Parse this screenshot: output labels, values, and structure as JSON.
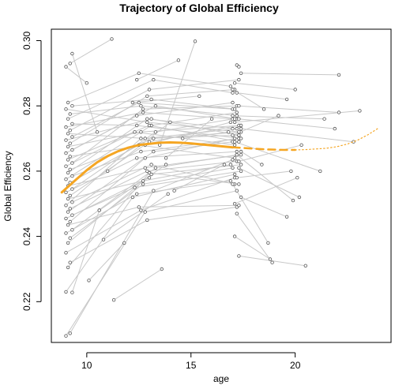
{
  "chart_data": {
    "type": "line",
    "title": "Trajectory of Global Efficiency",
    "xlabel": "age",
    "ylabel": "Global Efficiency",
    "xlim": [
      8.3,
      24.6
    ],
    "ylim": [
      0.2075,
      0.3035
    ],
    "x_ticks": [
      "10",
      "15",
      "20"
    ],
    "x_tick_values": [
      10,
      15,
      20
    ],
    "y_ticks": [
      "0.22",
      "0.24",
      "0.26",
      "0.28",
      "0.30"
    ],
    "y_tick_values": [
      0.22,
      0.24,
      0.26,
      0.28,
      0.3
    ],
    "grid": false,
    "colors": {
      "subject_lines": "#c8c8c8",
      "points": "#555555",
      "fit": "#f5a623",
      "frame": "#000000"
    },
    "series": [
      {
        "kind": "fit",
        "style": "solid",
        "x": [
          8.8,
          9.5,
          10,
          10.5,
          11,
          11.5,
          12,
          12.5,
          13,
          13.5,
          14,
          14.5,
          15,
          15.5,
          16,
          16.5,
          17
        ],
        "y": [
          0.2535,
          0.2575,
          0.2603,
          0.2627,
          0.2646,
          0.2661,
          0.2672,
          0.268,
          0.2684,
          0.2687,
          0.2688,
          0.2687,
          0.2685,
          0.2682,
          0.2679,
          0.2676,
          0.2673
        ]
      },
      {
        "kind": "fit",
        "style": "dashed",
        "x": [
          17,
          17.5,
          18,
          18.5,
          19,
          19.5,
          20
        ],
        "y": [
          0.2673,
          0.2671,
          0.2669,
          0.2667,
          0.2666,
          0.2665,
          0.2665
        ]
      },
      {
        "kind": "fit",
        "style": "dotted",
        "x": [
          20,
          20.5,
          21,
          21.5,
          22,
          22.5,
          23,
          23.5,
          24
        ],
        "y": [
          0.2665,
          0.2666,
          0.2668,
          0.267,
          0.2675,
          0.2683,
          0.2695,
          0.2712,
          0.2732
        ]
      }
    ],
    "trajectories": [
      [
        [
          9.0,
          0.2095
        ],
        [
          12.8,
          0.2475
        ],
        [
          17.2,
          0.254
        ]
      ],
      [
        [
          9.2,
          0.2103
        ],
        [
          13.2,
          0.254
        ],
        [
          17.0,
          0.2635
        ]
      ],
      [
        [
          9.0,
          0.223
        ],
        [
          12.2,
          0.252
        ],
        [
          17.1,
          0.259
        ]
      ],
      [
        [
          9.3,
          0.2228
        ],
        [
          10.6,
          0.248
        ]
      ],
      [
        [
          9.1,
          0.2305
        ],
        [
          13.0,
          0.2595
        ],
        [
          17.3,
          0.256
        ]
      ],
      [
        [
          9.2,
          0.232
        ],
        [
          12.9,
          0.245
        ],
        [
          17.2,
          0.249
        ]
      ],
      [
        [
          9.0,
          0.235
        ],
        [
          12.6,
          0.248
        ],
        [
          17.1,
          0.258
        ]
      ],
      [
        [
          9.1,
          0.238
        ],
        [
          13.1,
          0.259
        ],
        [
          17.4,
          0.262
        ]
      ],
      [
        [
          9.2,
          0.2395
        ],
        [
          12.7,
          0.256
        ],
        [
          17.0,
          0.261
        ]
      ],
      [
        [
          9.0,
          0.241
        ],
        [
          12.4,
          0.253
        ],
        [
          16.9,
          0.257
        ]
      ],
      [
        [
          9.3,
          0.242
        ],
        [
          13.3,
          0.261
        ],
        [
          17.2,
          0.265
        ]
      ],
      [
        [
          9.1,
          0.2435
        ],
        [
          12.5,
          0.249
        ],
        [
          17.3,
          0.2495
        ]
      ],
      [
        [
          9.2,
          0.2445
        ],
        [
          12.8,
          0.264
        ],
        [
          17.1,
          0.27
        ]
      ],
      [
        [
          9.0,
          0.2455
        ],
        [
          13.0,
          0.258
        ]
      ],
      [
        [
          9.3,
          0.2465
        ],
        [
          12.3,
          0.255
        ],
        [
          17.4,
          0.26
        ]
      ],
      [
        [
          9.1,
          0.2475
        ],
        [
          13.2,
          0.266
        ],
        [
          17.0,
          0.269
        ]
      ],
      [
        [
          9.2,
          0.2485
        ],
        [
          12.9,
          0.26
        ],
        [
          17.2,
          0.263
        ]
      ],
      [
        [
          9.0,
          0.2495
        ],
        [
          12.6,
          0.27
        ],
        [
          17.3,
          0.271
        ]
      ],
      [
        [
          9.3,
          0.2505
        ],
        [
          13.1,
          0.262
        ],
        [
          17.1,
          0.256
        ]
      ],
      [
        [
          9.1,
          0.2515
        ],
        [
          12.7,
          0.257
        ],
        [
          16.9,
          0.262
        ]
      ],
      [
        [
          9.2,
          0.2525
        ],
        [
          13.0,
          0.269
        ],
        [
          17.3,
          0.274
        ]
      ],
      [
        [
          9.0,
          0.2535
        ],
        [
          12.4,
          0.264
        ],
        [
          17.2,
          0.266
        ]
      ],
      [
        [
          9.3,
          0.2545
        ],
        [
          13.3,
          0.272
        ],
        [
          17.0,
          0.276
        ]
      ],
      [
        [
          9.1,
          0.2555
        ],
        [
          12.8,
          0.261
        ],
        [
          17.4,
          0.265
        ]
      ],
      [
        [
          9.2,
          0.2565
        ],
        [
          12.5,
          0.268
        ],
        [
          17.1,
          0.264
        ]
      ],
      [
        [
          9.0,
          0.2575
        ],
        [
          13.1,
          0.274
        ],
        [
          17.2,
          0.278
        ]
      ],
      [
        [
          9.3,
          0.2585
        ],
        [
          12.6,
          0.266
        ],
        [
          17.3,
          0.27
        ]
      ],
      [
        [
          9.1,
          0.2595
        ],
        [
          12.9,
          0.276
        ],
        [
          17.0,
          0.273
        ]
      ],
      [
        [
          9.2,
          0.2605
        ],
        [
          13.2,
          0.27
        ],
        [
          17.4,
          0.272
        ]
      ],
      [
        [
          9.0,
          0.2615
        ],
        [
          12.3,
          0.272
        ],
        [
          17.1,
          0.268
        ]
      ],
      [
        [
          9.3,
          0.2625
        ],
        [
          12.7,
          0.279
        ],
        [
          17.2,
          0.28
        ]
      ],
      [
        [
          9.1,
          0.2635
        ],
        [
          13.0,
          0.274
        ],
        [
          17.3,
          0.269
        ]
      ],
      [
        [
          9.2,
          0.2645
        ],
        [
          12.8,
          0.268
        ],
        [
          16.9,
          0.275
        ]
      ],
      [
        [
          9.0,
          0.2655
        ],
        [
          12.4,
          0.277
        ],
        [
          17.0,
          0.281
        ]
      ],
      [
        [
          9.3,
          0.2665
        ],
        [
          13.3,
          0.28
        ],
        [
          17.2,
          0.276
        ]
      ],
      [
        [
          9.1,
          0.2675
        ],
        [
          12.6,
          0.272
        ],
        [
          17.4,
          0.274
        ]
      ],
      [
        [
          9.2,
          0.2685
        ],
        [
          12.9,
          0.283
        ],
        [
          17.1,
          0.285
        ]
      ],
      [
        [
          9.0,
          0.2695
        ],
        [
          13.1,
          0.276
        ],
        [
          17.3,
          0.271
        ]
      ],
      [
        [
          9.3,
          0.2705
        ],
        [
          12.5,
          0.281
        ],
        [
          17.0,
          0.279
        ]
      ],
      [
        [
          9.1,
          0.2715
        ],
        [
          12.8,
          0.27
        ],
        [
          17.2,
          0.273
        ]
      ],
      [
        [
          9.2,
          0.2725
        ],
        [
          13.0,
          0.285
        ],
        [
          17.3,
          0.288
        ]
      ],
      [
        [
          9.0,
          0.2735
        ],
        [
          12.7,
          0.278
        ],
        [
          17.1,
          0.276
        ]
      ],
      [
        [
          9.3,
          0.2745
        ],
        [
          12.4,
          0.274
        ],
        [
          17.4,
          0.27
        ]
      ],
      [
        [
          9.1,
          0.276
        ],
        [
          13.2,
          0.288
        ],
        [
          17.0,
          0.284
        ]
      ],
      [
        [
          9.2,
          0.2775
        ],
        [
          12.6,
          0.28
        ],
        [
          17.2,
          0.277
        ]
      ],
      [
        [
          9.0,
          0.279
        ],
        [
          12.9,
          0.275
        ],
        [
          17.3,
          0.272
        ]
      ],
      [
        [
          9.3,
          0.28
        ],
        [
          13.1,
          0.282
        ],
        [
          17.1,
          0.279
        ]
      ],
      [
        [
          9.1,
          0.281
        ],
        [
          12.5,
          0.29
        ],
        [
          16.9,
          0.286
        ]
      ],
      [
        [
          9.2,
          0.293
        ],
        [
          11.2,
          0.3005
        ]
      ],
      [
        [
          9.3,
          0.296
        ],
        [
          10.5,
          0.272
        ]
      ],
      [
        [
          9.0,
          0.292
        ],
        [
          10.0,
          0.287
        ]
      ],
      [
        [
          11.3,
          0.2205
        ],
        [
          13.6,
          0.23
        ]
      ],
      [
        [
          10.1,
          0.2265
        ],
        [
          11.8,
          0.238
        ]
      ],
      [
        [
          10.8,
          0.239
        ],
        [
          13.9,
          0.253
        ]
      ],
      [
        [
          10.6,
          0.248
        ],
        [
          13.8,
          0.262
        ]
      ],
      [
        [
          11.0,
          0.26
        ],
        [
          14.0,
          0.275
        ]
      ],
      [
        [
          12.2,
          0.281
        ],
        [
          15.4,
          0.283
        ]
      ],
      [
        [
          13.5,
          0.268
        ],
        [
          15.2,
          0.2998
        ]
      ],
      [
        [
          12.4,
          0.288
        ],
        [
          14.4,
          0.294
        ]
      ],
      [
        [
          13.8,
          0.264
        ],
        [
          16.0,
          0.276
        ]
      ],
      [
        [
          14.2,
          0.254
        ],
        [
          16.6,
          0.262
        ]
      ],
      [
        [
          14.6,
          0.27
        ],
        [
          16.8,
          0.272
        ]
      ],
      [
        [
          17.3,
          0.234
        ],
        [
          20.5,
          0.231
        ]
      ],
      [
        [
          17.1,
          0.24
        ],
        [
          18.8,
          0.233
        ]
      ],
      [
        [
          17.2,
          0.247
        ],
        [
          18.9,
          0.232
        ]
      ],
      [
        [
          17.4,
          0.252
        ],
        [
          19.6,
          0.246
        ]
      ],
      [
        [
          17.0,
          0.256
        ],
        [
          18.7,
          0.238
        ]
      ],
      [
        [
          17.3,
          0.261
        ],
        [
          20.2,
          0.252
        ]
      ],
      [
        [
          17.2,
          0.265
        ],
        [
          19.9,
          0.251
        ]
      ],
      [
        [
          17.1,
          0.269
        ],
        [
          21.2,
          0.26
        ]
      ],
      [
        [
          17.4,
          0.273
        ],
        [
          22.8,
          0.269
        ]
      ],
      [
        [
          17.0,
          0.277
        ],
        [
          21.4,
          0.276
        ]
      ],
      [
        [
          17.3,
          0.28
        ],
        [
          22.1,
          0.278
        ]
      ],
      [
        [
          17.2,
          0.284
        ],
        [
          19.6,
          0.282
        ]
      ],
      [
        [
          17.1,
          0.287
        ],
        [
          20.0,
          0.285
        ]
      ],
      [
        [
          17.4,
          0.29
        ],
        [
          22.1,
          0.2895
        ]
      ],
      [
        [
          17.2,
          0.2925
        ],
        [
          17.3,
          0.292
        ]
      ],
      [
        [
          17.3,
          0.263
        ],
        [
          20.3,
          0.268
        ]
      ],
      [
        [
          17.1,
          0.275
        ],
        [
          23.1,
          0.2785
        ]
      ],
      [
        [
          17.0,
          0.271
        ],
        [
          19.2,
          0.277
        ]
      ],
      [
        [
          17.2,
          0.258
        ],
        [
          19.8,
          0.26
        ]
      ],
      [
        [
          17.3,
          0.276
        ],
        [
          21.9,
          0.273
        ]
      ],
      [
        [
          17.4,
          0.266
        ],
        [
          18.4,
          0.262
        ]
      ],
      [
        [
          17.0,
          0.285
        ],
        [
          18.5,
          0.279
        ]
      ],
      [
        [
          17.1,
          0.25
        ],
        [
          20.1,
          0.258
        ]
      ]
    ]
  }
}
